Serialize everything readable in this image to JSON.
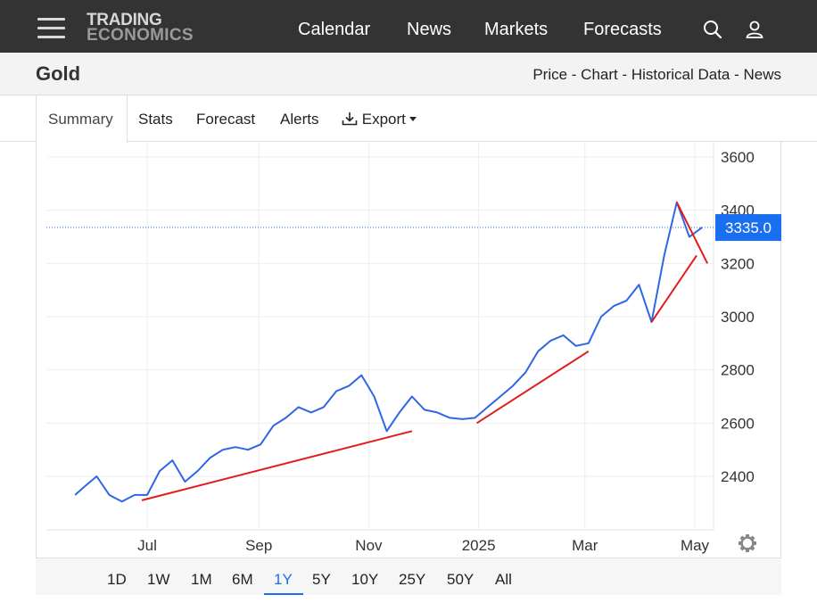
{
  "nav": {
    "logo_line1": "TRADING",
    "logo_line2": "ECONOMICS",
    "links": [
      "Calendar",
      "News",
      "Markets",
      "Forecasts"
    ],
    "search_icon": "search-icon",
    "user_icon": "user-icon",
    "menu_icon": "hamburger-menu-icon"
  },
  "title_bar": {
    "title": "Gold",
    "breadcrumb": "Price - Chart - Historical Data - News"
  },
  "tabs": {
    "items": [
      "Summary",
      "Stats",
      "Forecast",
      "Alerts"
    ],
    "export_label": "Export",
    "active": "Summary"
  },
  "colors": {
    "line": "#2f66e6",
    "trendline": "#e31b1b",
    "price_badge": "#1a6ef0",
    "nav_bg": "#333333"
  },
  "chart_data": {
    "type": "line",
    "series": [
      {
        "x": [
          "2024-05-22",
          "2024-05-27",
          "2024-06-03",
          "2024-06-10",
          "2024-06-17",
          "2024-06-24",
          "2024-07-01",
          "2024-07-08",
          "2024-07-15",
          "2024-07-22",
          "2024-07-29",
          "2024-08-05",
          "2024-08-12",
          "2024-08-19",
          "2024-08-26",
          "2024-09-02",
          "2024-09-09",
          "2024-09-16",
          "2024-09-23",
          "2024-09-30",
          "2024-10-07",
          "2024-10-14",
          "2024-10-21",
          "2024-10-28",
          "2024-11-04",
          "2024-11-11",
          "2024-11-18",
          "2024-11-25",
          "2024-12-02",
          "2024-12-09",
          "2024-12-16",
          "2024-12-23",
          "2024-12-30",
          "2025-01-06",
          "2025-01-13",
          "2025-01-20",
          "2025-01-27",
          "2025-02-03",
          "2025-02-10",
          "2025-02-17",
          "2025-02-24",
          "2025-03-03",
          "2025-03-10",
          "2025-03-17",
          "2025-03-24",
          "2025-03-31",
          "2025-04-07",
          "2025-04-14",
          "2025-04-21",
          "2025-04-28",
          "2025-05-05"
        ],
        "y": [
          2330,
          2360,
          2400,
          2330,
          2305,
          2330,
          2330,
          2420,
          2460,
          2380,
          2420,
          2470,
          2500,
          2510,
          2500,
          2520,
          2590,
          2620,
          2660,
          2640,
          2660,
          2720,
          2740,
          2780,
          2700,
          2570,
          2640,
          2700,
          2650,
          2640,
          2620,
          2615,
          2620,
          2660,
          2700,
          2740,
          2790,
          2870,
          2910,
          2930,
          2890,
          2900,
          3000,
          3040,
          3060,
          3120,
          2980,
          3230,
          3430,
          3300,
          3335
        ]
      }
    ],
    "last_price": "3335.0",
    "y_ticks": [
      2400,
      2600,
      2800,
      3000,
      3200,
      3400,
      3600
    ],
    "x_ticks": [
      "Jul",
      "Sep",
      "Nov",
      "2025",
      "Mar",
      "May"
    ],
    "ylim": [
      2220,
      3640
    ],
    "grid": true,
    "trendlines": [
      {
        "from": [
          "2024-06-28",
          2310
        ],
        "to": [
          "2024-11-25",
          2570
        ]
      },
      {
        "from": [
          "2024-12-31",
          2600
        ],
        "to": [
          "2025-03-03",
          2870
        ]
      },
      {
        "from": [
          "2025-04-07",
          2980
        ],
        "to": [
          "2025-05-02",
          3230
        ]
      },
      {
        "from": [
          "2025-04-21",
          3430
        ],
        "to": [
          "2025-05-08",
          3200
        ]
      }
    ]
  },
  "range_selector": {
    "options": [
      "1D",
      "1W",
      "1M",
      "6M",
      "1Y",
      "5Y",
      "10Y",
      "25Y",
      "50Y",
      "All"
    ],
    "active": "1Y"
  },
  "settings_icon": "gear-icon"
}
